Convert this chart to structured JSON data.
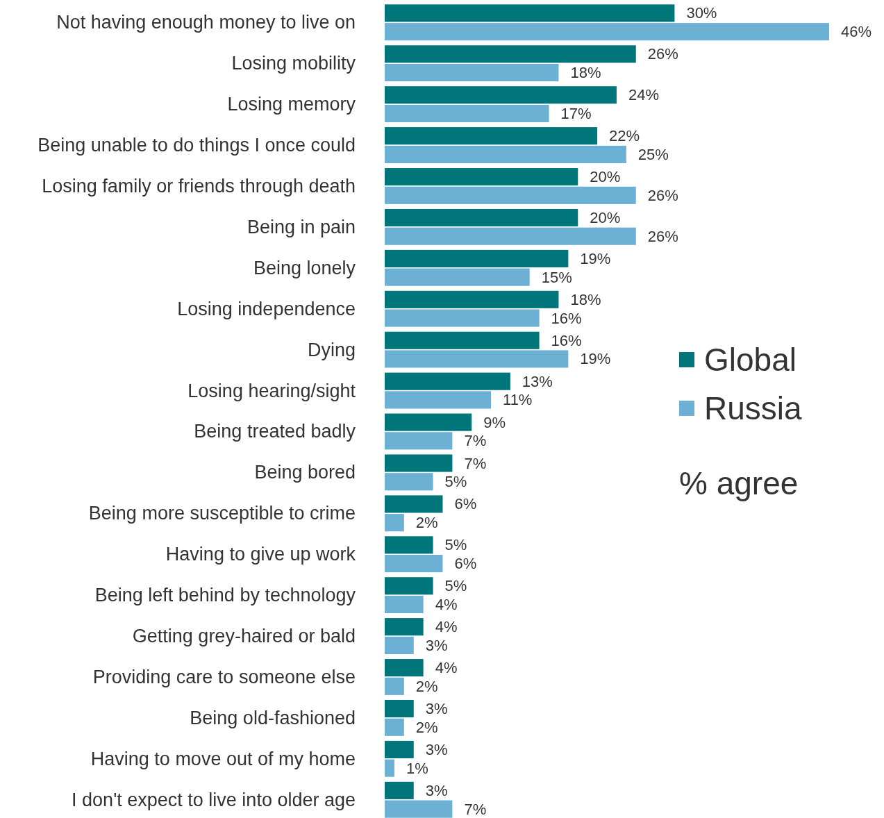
{
  "chart_data": {
    "type": "bar",
    "orientation": "horizontal",
    "legend": "right",
    "legend_title": "% agree",
    "categories": [
      "Not having enough money to live on",
      "Losing mobility",
      "Losing memory",
      "Being unable to do things I once could",
      "Losing family or friends through death",
      "Being in pain",
      "Being lonely",
      "Losing independence",
      "Dying",
      "Losing hearing/sight",
      "Being treated badly",
      "Being bored",
      "Being more susceptible to crime",
      "Having to give up work",
      "Being left behind by technology",
      "Getting grey-haired or bald",
      "Providing care to someone else",
      "Being old-fashioned",
      "Having to move out of my home",
      "I don't expect to live into older age"
    ],
    "series": [
      {
        "name": "Global",
        "color": "#00757a",
        "values": [
          30,
          26,
          24,
          22,
          20,
          20,
          19,
          18,
          16,
          13,
          9,
          7,
          6,
          5,
          5,
          4,
          4,
          3,
          3,
          3
        ],
        "value_labels": [
          "30%",
          "26%",
          "24%",
          "22%",
          "20%",
          "20%",
          "19%",
          "18%",
          "16%",
          "13%",
          "9%",
          "7%",
          "6%",
          "5%",
          "5%",
          "4%",
          "4%",
          "3%",
          "3%",
          "3%"
        ]
      },
      {
        "name": "Russia",
        "color": "#6cb0d4",
        "values": [
          46,
          18,
          17,
          25,
          26,
          26,
          15,
          16,
          19,
          11,
          7,
          5,
          2,
          6,
          4,
          3,
          2,
          2,
          1,
          7
        ],
        "value_labels": [
          "46%",
          "18%",
          "17%",
          "25%",
          "26%",
          "26%",
          "15%",
          "16%",
          "19%",
          "11%",
          "7%",
          "5%",
          "2%",
          "6%",
          "4%",
          "3%",
          "2%",
          "2%",
          "1%",
          "7%"
        ]
      }
    ]
  }
}
